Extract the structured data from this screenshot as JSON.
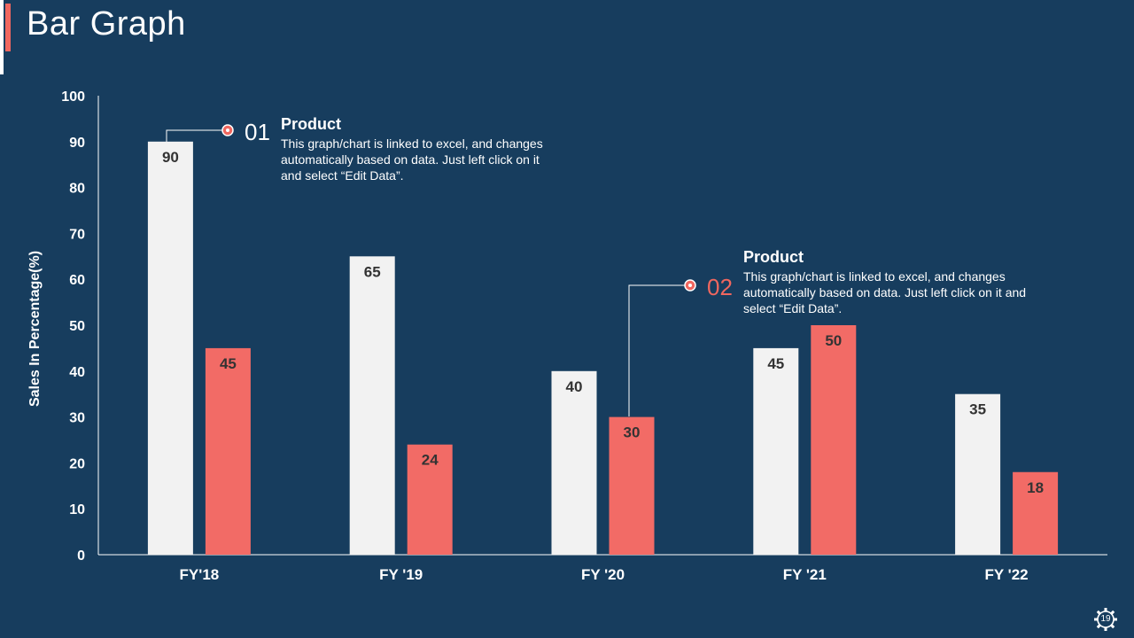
{
  "slide": {
    "title": "Bar Graph",
    "page_number": "19"
  },
  "annotations": [
    {
      "number": "01",
      "heading": "Product",
      "body": "This graph/chart is linked to excel, and changes automatically based on data. Just left click on it and select “Edit Data”."
    },
    {
      "number": "02",
      "heading": "Product",
      "body": "This graph/chart is linked to excel, and changes automatically based on data. Just left click on it and select “Edit Data”."
    }
  ],
  "colors": {
    "background": "#173d5e",
    "series1": "#f2f2f2",
    "series2": "#f26b66",
    "accent": "#f0675f"
  },
  "chart_data": {
    "type": "bar",
    "categories": [
      "FY'18",
      "FY '19",
      "FY '20",
      "FY '21",
      "FY '22"
    ],
    "series": [
      {
        "values": [
          90,
          65,
          40,
          45,
          35
        ]
      },
      {
        "values": [
          45,
          24,
          30,
          50,
          18
        ]
      }
    ],
    "ylabel": "Sales In Percentage(%)",
    "ylim": [
      0,
      100
    ],
    "yticks": [
      0,
      10,
      20,
      30,
      40,
      50,
      60,
      70,
      80,
      90,
      100
    ],
    "grid": false,
    "data_labels": true
  }
}
